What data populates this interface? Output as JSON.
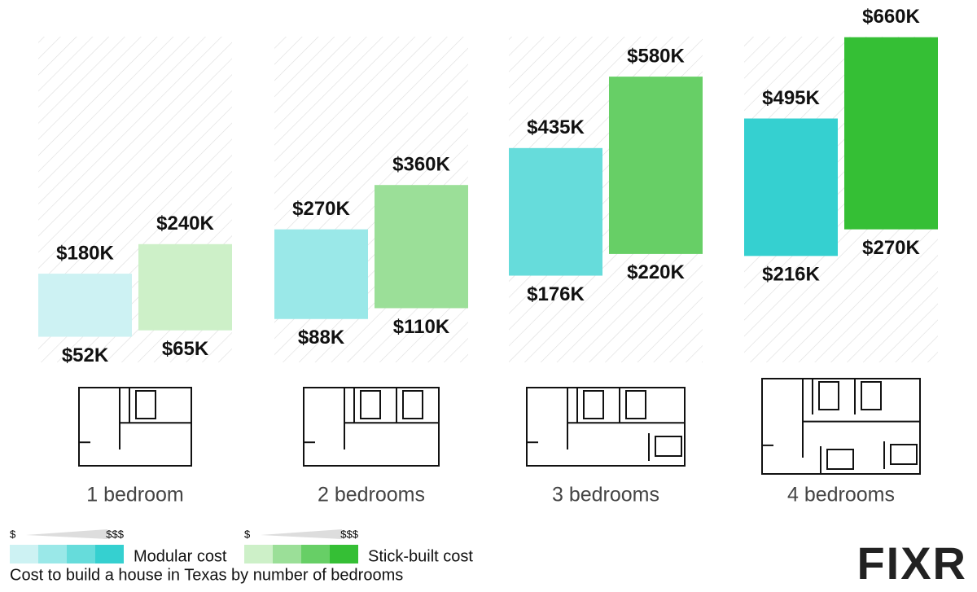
{
  "chart_data": {
    "type": "floating-bar",
    "categories": [
      "1 bedroom",
      "2 bedrooms",
      "3 bedrooms",
      "4 bedrooms"
    ],
    "series": [
      {
        "name": "Modular cost",
        "colors": [
          "#cdf2f3",
          "#9ae8e8",
          "#66dcdb",
          "#35d0d0"
        ],
        "low": [
          52,
          88,
          176,
          216
        ],
        "high": [
          180,
          270,
          435,
          495
        ],
        "low_labels": [
          "$52K",
          "$88K",
          "$176K",
          "$216K"
        ],
        "high_labels": [
          "$180K",
          "$270K",
          "$435K",
          "$495K"
        ]
      },
      {
        "name": "Stick-built cost",
        "colors": [
          "#cdf0c8",
          "#9bdf98",
          "#67cf66",
          "#35bf35"
        ],
        "low": [
          65,
          110,
          220,
          270
        ],
        "high": [
          240,
          360,
          580,
          660
        ],
        "low_labels": [
          "$65K",
          "$110K",
          "$220K",
          "$270K"
        ],
        "high_labels": [
          "$240K",
          "$360K",
          "$580K",
          "$660K"
        ]
      }
    ],
    "legend_scale_labels": [
      "$",
      "$$$"
    ],
    "caption": "Cost to build a house in Texas by number of bedrooms",
    "brand": "FIXR"
  }
}
